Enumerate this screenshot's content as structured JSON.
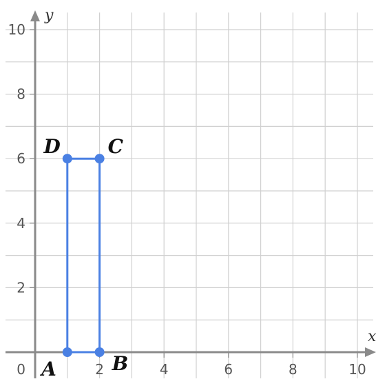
{
  "chart_data": {
    "type": "scatter",
    "title": "",
    "xlabel": "x",
    "ylabel": "y",
    "xlim": [
      0,
      10.4
    ],
    "ylim": [
      0,
      10.4
    ],
    "xticks": [
      0,
      2,
      4,
      6,
      8,
      10
    ],
    "yticks": [
      2,
      4,
      6,
      8,
      10
    ],
    "origin_label": "0",
    "grid_step": 1,
    "grid": true,
    "series": [
      {
        "shape": "rectangle",
        "color": "#4a80e3",
        "closed": true,
        "points": [
          {
            "label": "A",
            "x": 1,
            "y": 0
          },
          {
            "label": "B",
            "x": 2,
            "y": 0
          },
          {
            "label": "C",
            "x": 2,
            "y": 6
          },
          {
            "label": "D",
            "x": 1,
            "y": 6
          }
        ]
      }
    ]
  }
}
